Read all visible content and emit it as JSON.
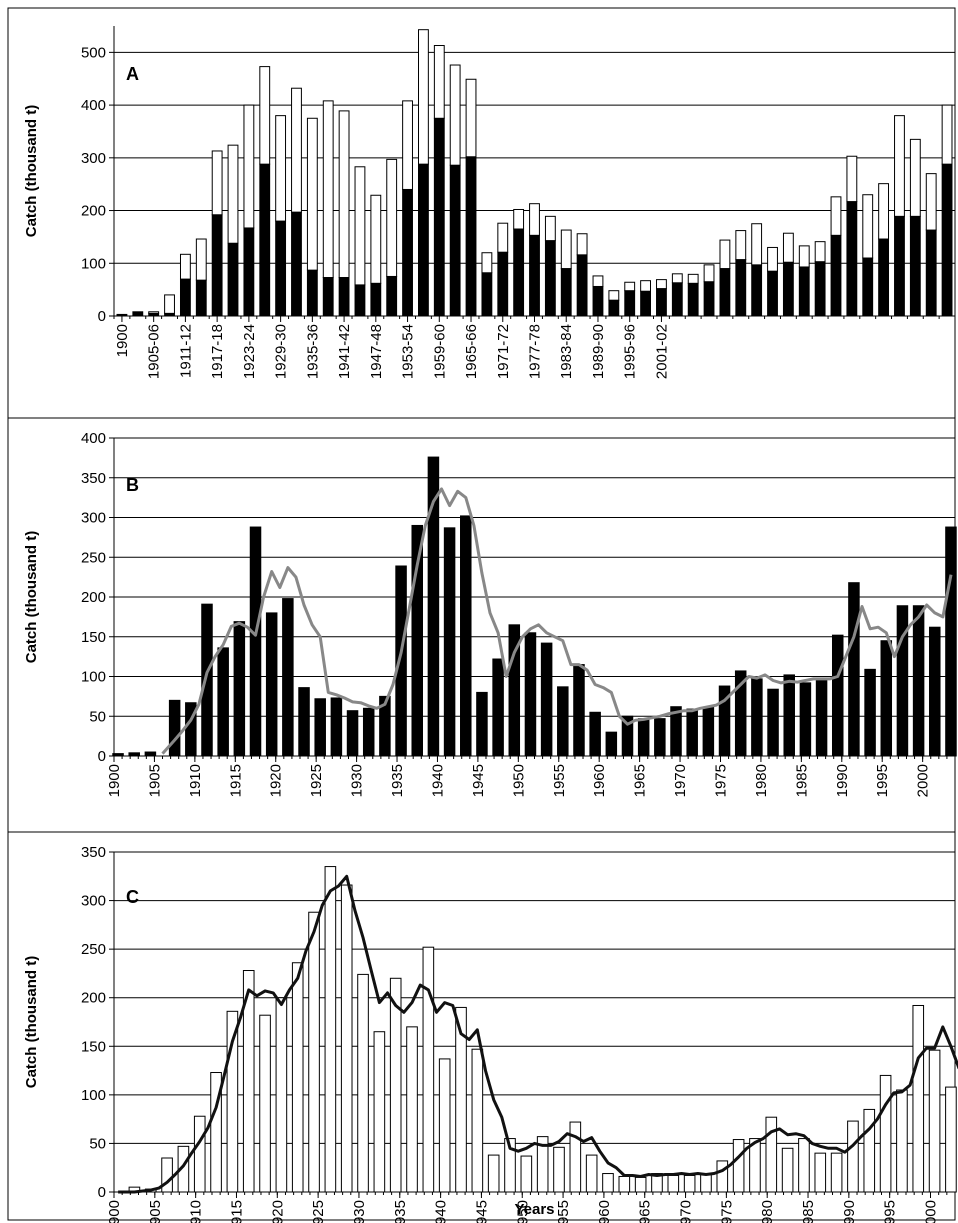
{
  "chart_data": [
    {
      "type": "bar",
      "panel": "A",
      "stacked": true,
      "ylabel": "Catch (thousand t)",
      "xlabel": "",
      "ylim": [
        0,
        550
      ],
      "yticks": [
        0,
        100,
        200,
        300,
        400,
        500
      ],
      "grid": true,
      "x_start": 1900,
      "x_tick_labels": [
        "1900",
        "1905-06",
        "1911-12",
        "1917-18",
        "1923-24",
        "1929-30",
        "1935-36",
        "1941-42",
        "1947-48",
        "1953-54",
        "1959-60",
        "1965-66",
        "1971-72",
        "1977-78",
        "1983-84",
        "1989-90",
        "1995-96",
        "2001-02"
      ],
      "x_tick_every": 2,
      "series": [
        {
          "fill": "#000000",
          "values": [
            3,
            8,
            5,
            5,
            70,
            68,
            192,
            138,
            167,
            288,
            180,
            197,
            87,
            73,
            73,
            59,
            62,
            75,
            240,
            288,
            375,
            286,
            302,
            82,
            121,
            165,
            153,
            143,
            90,
            116,
            56,
            30,
            48,
            47,
            52,
            63,
            62,
            65,
            90,
            107,
            97,
            85,
            102,
            93,
            103,
            153,
            217,
            110,
            146,
            189,
            189,
            163,
            288
          ]
        },
        {
          "fill": "#ffffff",
          "values": [
            0,
            0,
            3,
            35,
            47,
            78,
            121,
            186,
            233,
            185,
            200,
            235,
            288,
            335,
            316,
            224,
            167,
            222,
            168,
            255,
            138,
            190,
            147,
            38,
            55,
            37,
            60,
            46,
            73,
            40,
            20,
            18,
            16,
            20,
            17,
            17,
            17,
            32,
            54,
            55,
            78,
            45,
            55,
            40,
            38,
            73,
            86,
            120,
            105,
            191,
            146,
            107,
            112
          ]
        }
      ]
    },
    {
      "type": "bar",
      "panel": "B",
      "ylabel": "Catch (thousand t)",
      "xlabel": "",
      "ylim": [
        0,
        400
      ],
      "yticks": [
        0,
        50,
        100,
        150,
        200,
        250,
        300,
        350,
        400
      ],
      "grid": true,
      "x_start": 1900,
      "x_tick_labels": [
        "1900",
        "1905",
        "1910",
        "1915",
        "1920",
        "1925",
        "1930",
        "1935",
        "1940",
        "1945",
        "1950",
        "1955",
        "1960",
        "1965",
        "1970",
        "1975",
        "1980",
        "1985",
        "1990",
        "1995",
        "2000"
      ],
      "x_tick_every": 5,
      "bar_fill": "#000000",
      "values": [
        3,
        0,
        4,
        0,
        5,
        0,
        0,
        70,
        0,
        67,
        0,
        191,
        0,
        136,
        0,
        169,
        0,
        288,
        0,
        180,
        0,
        198,
        0,
        86,
        0,
        72,
        0,
        73,
        0,
        57,
        0,
        60,
        0,
        75,
        0,
        239,
        0,
        290,
        0,
        376,
        0,
        287,
        0,
        302,
        0,
        80,
        0,
        122,
        0,
        165,
        0,
        155,
        0,
        142,
        0,
        87,
        0,
        115,
        0,
        55,
        0,
        30,
        0,
        50,
        0,
        47,
        0,
        47,
        0,
        62,
        0,
        59,
        0,
        61,
        0,
        88,
        0,
        107,
        0,
        97,
        0,
        84,
        0,
        102,
        0,
        92,
        0,
        96,
        0,
        152,
        0,
        218,
        0,
        109,
        0,
        145,
        0,
        189,
        0,
        189,
        0,
        162,
        0,
        288
      ],
      "line": {
        "color": "#888888",
        "x": [
          1905.5,
          1907,
          1908,
          1909,
          1910,
          1911,
          1912,
          1913,
          1914,
          1915,
          1916,
          1917,
          1918,
          1919,
          1920,
          1921,
          1922,
          1923,
          1924,
          1925,
          1926,
          1927,
          1928,
          1929,
          1930,
          1931,
          1932,
          1933,
          1934,
          1935,
          1936,
          1937,
          1938,
          1939,
          1940,
          1941,
          1942,
          1943,
          1944,
          1945,
          1946,
          1947,
          1948,
          1949,
          1950,
          1951,
          1952,
          1953,
          1954,
          1955,
          1956,
          1957,
          1958,
          1959,
          1960,
          1961,
          1962,
          1963,
          1964,
          1965,
          1966,
          1967,
          1968,
          1969,
          1970,
          1971,
          1972,
          1973,
          1974,
          1975,
          1976,
          1977,
          1978,
          1979,
          1980,
          1981,
          1982,
          1983,
          1984,
          1985,
          1986,
          1987,
          1988,
          1989,
          1990,
          1991,
          1992,
          1993,
          1994,
          1995,
          1996,
          1997,
          1998,
          1999,
          2000,
          2001,
          2002,
          2003
        ],
        "y": [
          3,
          20,
          32,
          45,
          65,
          105,
          125,
          140,
          163,
          167,
          162,
          152,
          200,
          232,
          212,
          237,
          225,
          190,
          165,
          150,
          80,
          77,
          73,
          68,
          67,
          63,
          60,
          65,
          90,
          130,
          185,
          240,
          290,
          320,
          336,
          315,
          333,
          325,
          290,
          230,
          180,
          155,
          100,
          130,
          150,
          160,
          165,
          155,
          150,
          145,
          115,
          115,
          108,
          90,
          86,
          80,
          50,
          40,
          45,
          46,
          48,
          50,
          53,
          55,
          57,
          57,
          60,
          62,
          64,
          70,
          80,
          90,
          100,
          98,
          102,
          95,
          92,
          94,
          93,
          95,
          97,
          97,
          97,
          100,
          125,
          150,
          188,
          160,
          162,
          155,
          125,
          150,
          165,
          175,
          190,
          180,
          175,
          228
        ]
      }
    },
    {
      "type": "bar",
      "panel": "C",
      "ylabel": "Catch (thousand t)",
      "xlabel": "Years",
      "ylim": [
        0,
        350
      ],
      "yticks": [
        0,
        50,
        100,
        150,
        200,
        250,
        300,
        350
      ],
      "grid": true,
      "x_start": 1900,
      "x_tick_labels": [
        "1900",
        "1905",
        "1910",
        "1915",
        "1920",
        "1925",
        "1930",
        "1935",
        "1940",
        "1945",
        "1950",
        "1955",
        "1960",
        "1965",
        "1970",
        "1975",
        "1980",
        "1985",
        "1990",
        "1995",
        "2000"
      ],
      "x_tick_every": 5,
      "bar_fill": "#ffffff",
      "values": [
        0,
        0,
        5,
        0,
        3,
        0,
        35,
        0,
        47,
        0,
        78,
        0,
        123,
        0,
        186,
        0,
        228,
        0,
        182,
        0,
        200,
        0,
        236,
        0,
        288,
        0,
        335,
        0,
        316,
        0,
        224,
        0,
        165,
        0,
        220,
        0,
        170,
        0,
        252,
        0,
        137,
        0,
        190,
        0,
        147,
        0,
        38,
        0,
        55,
        0,
        37,
        0,
        57,
        0,
        46,
        0,
        72,
        0,
        38,
        0,
        19,
        0,
        16,
        0,
        15,
        0,
        19,
        0,
        17,
        0,
        17,
        0,
        18,
        0,
        32,
        0,
        54,
        0,
        55,
        0,
        77,
        0,
        45,
        0,
        55,
        0,
        40,
        0,
        40,
        0,
        73,
        0,
        85,
        0,
        120,
        0,
        105,
        0,
        192,
        0,
        146,
        0,
        108
      ],
      "line": {
        "color": "#111111",
        "x": [
          1900,
          1901,
          1902,
          1903,
          1904,
          1905,
          1906,
          1907,
          1908,
          1909,
          1910,
          1911,
          1912,
          1913,
          1914,
          1915,
          1916,
          1917,
          1918,
          1919,
          1920,
          1921,
          1922,
          1923,
          1924,
          1925,
          1926,
          1927,
          1928,
          1929,
          1930,
          1931,
          1932,
          1933,
          1934,
          1935,
          1936,
          1937,
          1938,
          1939,
          1940,
          1941,
          1942,
          1943,
          1944,
          1945,
          1946,
          1947,
          1948,
          1949,
          1950,
          1951,
          1952,
          1953,
          1954,
          1955,
          1956,
          1957,
          1958,
          1959,
          1960,
          1961,
          1962,
          1963,
          1964,
          1965,
          1966,
          1967,
          1968,
          1969,
          1970,
          1971,
          1972,
          1973,
          1974,
          1975,
          1976,
          1977,
          1978,
          1979,
          1980,
          1981,
          1982,
          1983,
          1984,
          1985,
          1986,
          1987,
          1988,
          1989,
          1990,
          1991,
          1992,
          1993,
          1994,
          1995,
          1996,
          1997,
          1998,
          1999,
          2000,
          2001,
          2002,
          2003
        ],
        "y": [
          0,
          0,
          0,
          1,
          2,
          4,
          10,
          18,
          27,
          40,
          52,
          66,
          87,
          120,
          155,
          180,
          208,
          202,
          207,
          205,
          193,
          208,
          220,
          248,
          268,
          295,
          310,
          315,
          325,
          290,
          262,
          228,
          195,
          205,
          192,
          185,
          195,
          213,
          208,
          185,
          195,
          192,
          163,
          157,
          167,
          125,
          95,
          77,
          45,
          42,
          45,
          50,
          48,
          48,
          52,
          60,
          57,
          52,
          56,
          42,
          30,
          25,
          17,
          17,
          16,
          18,
          17,
          18,
          18,
          19,
          18,
          19,
          18,
          19,
          22,
          28,
          36,
          45,
          51,
          55,
          62,
          65,
          59,
          60,
          58,
          50,
          47,
          45,
          45,
          41,
          48,
          57,
          65,
          75,
          90,
          102,
          103,
          110,
          138,
          148,
          148,
          170,
          150,
          127
        ]
      }
    }
  ]
}
